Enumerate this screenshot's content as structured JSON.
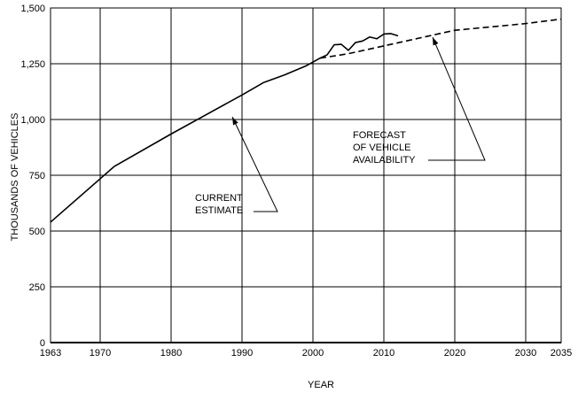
{
  "chart_data": {
    "type": "line",
    "xlabel": "YEAR",
    "ylabel": "THOUSANDS OF VEHICLES",
    "xlim": [
      1963,
      2035
    ],
    "ylim": [
      0,
      1500
    ],
    "grid": true,
    "x_ticks": [
      1963,
      1970,
      1980,
      1990,
      2000,
      2010,
      2020,
      2030,
      2035
    ],
    "y_ticks": [
      0,
      250,
      500,
      750,
      1000,
      1250,
      1500
    ],
    "x_tick_labels": [
      "1963",
      "1970",
      "1980",
      "1990",
      "2000",
      "2010",
      "2020",
      "2030",
      "2035"
    ],
    "y_tick_labels": [
      "0",
      "250",
      "500",
      "750",
      "1,000",
      "1,250",
      "1,500"
    ],
    "series": [
      {
        "name": "CURRENT ESTIMATE",
        "style": "solid",
        "x": [
          1963,
          1972,
          1980,
          1990,
          1993,
          1996,
          1999,
          2001,
          2002,
          2003,
          2004,
          2005,
          2006,
          2007,
          2008,
          2009,
          2010,
          2011,
          2012
        ],
        "y": [
          540,
          790,
          935,
          1110,
          1165,
          1200,
          1240,
          1275,
          1290,
          1335,
          1337,
          1310,
          1345,
          1352,
          1370,
          1362,
          1383,
          1385,
          1375
        ]
      },
      {
        "name": "FORECAST OF VEHICLE AVAILABILITY",
        "style": "dashed",
        "x": [
          2001,
          2005,
          2010,
          2015,
          2020,
          2025,
          2030,
          2035
        ],
        "y": [
          1275,
          1295,
          1330,
          1365,
          1400,
          1415,
          1430,
          1450
        ]
      }
    ],
    "annotations": [
      {
        "label": "CURRENT ESTIMATE",
        "lines": [
          "CURRENT",
          "ESTIMATE"
        ]
      },
      {
        "label": "FORECAST OF VEHICLE AVAILABILITY",
        "lines": [
          "FORECAST",
          "OF  VEHICLE",
          "AVAILABILITY"
        ]
      }
    ],
    "colors": {
      "line": "#000000",
      "grid": "#000000",
      "background": "#ffffff"
    }
  }
}
